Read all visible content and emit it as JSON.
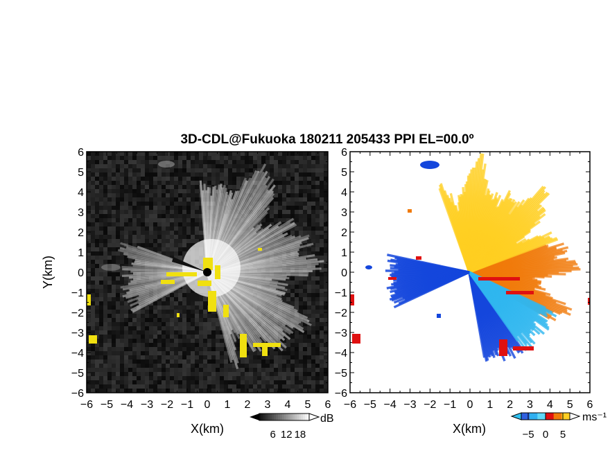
{
  "chart_data": [
    {
      "type": "heatmap",
      "panel": "reflectivity",
      "title": "3D-CDL@Fukuoka 180211 205433 PPI EL=00.0º",
      "xlabel": "X(km)",
      "ylabel": "Y(km)",
      "xlim": [
        -6,
        6
      ],
      "ylim": [
        -6,
        6
      ],
      "xticks": [
        "−6",
        "−5",
        "−4",
        "−3",
        "−2",
        "−1",
        "0",
        "1",
        "2",
        "3",
        "4",
        "5",
        "6"
      ],
      "yticks": [
        "6",
        "5",
        "4",
        "3",
        "2",
        "1",
        "0",
        "−1",
        "−2",
        "−3",
        "−4",
        "−5",
        "−6"
      ],
      "colorbar": {
        "unit": "dB",
        "ticks": [
          "6",
          "12",
          "18"
        ],
        "tick_values": [
          6,
          12,
          18
        ],
        "range": [
          0,
          22
        ]
      },
      "colors": {
        "background": "#101010",
        "signal": "#ffffff",
        "flag": "#f0e010"
      }
    },
    {
      "type": "heatmap",
      "panel": "doppler_velocity",
      "xlabel": "X(km)",
      "xlim": [
        -6,
        6
      ],
      "ylim": [
        -6,
        6
      ],
      "xticks": [
        "−6",
        "−5",
        "−4",
        "−3",
        "−2",
        "−1",
        "0",
        "1",
        "2",
        "3",
        "4",
        "5",
        "6"
      ],
      "yticks": [
        "6",
        "5",
        "4",
        "3",
        "2",
        "1",
        "0",
        "−1",
        "−2",
        "−3",
        "−4",
        "−5",
        "−6"
      ],
      "colorbar": {
        "unit": "ms⁻¹",
        "ticks": [
          "−5",
          "0",
          "5"
        ],
        "tick_values": [
          -5,
          0,
          5
        ],
        "range": [
          -7,
          7
        ]
      },
      "colors": {
        "negative": "#1040e0",
        "near_zero_negative": "#30c0f0",
        "positive": "#f08000",
        "strong_positive": "#ffd020",
        "boundary": "#e01010"
      }
    }
  ]
}
